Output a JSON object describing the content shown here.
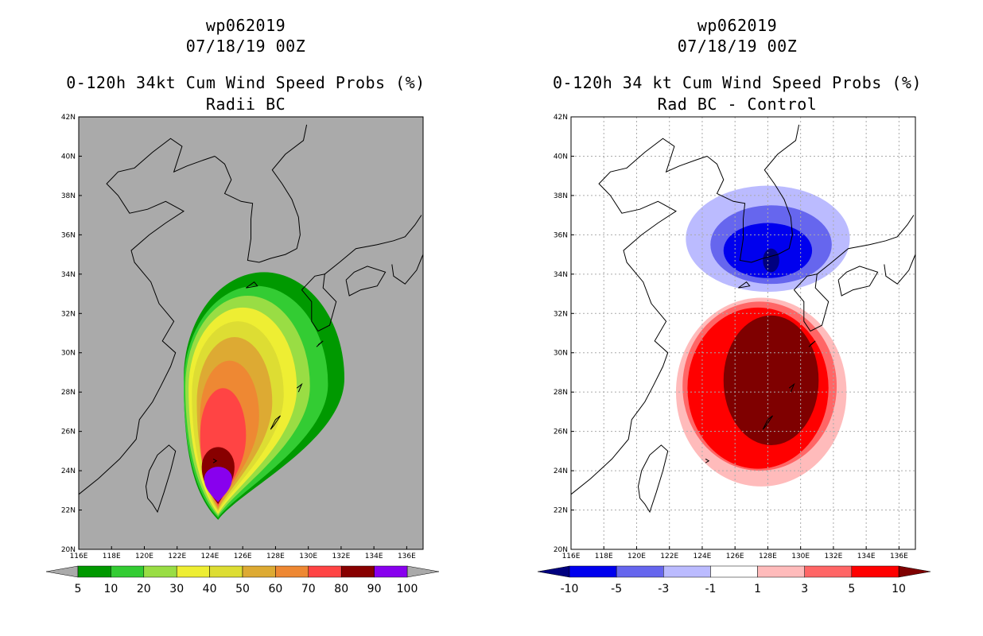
{
  "chart_data": [
    {
      "type": "heatmap",
      "storm_id": "wp062019",
      "datetime": "07/18/19 00Z",
      "title": "0-120h 34kt Cum Wind Speed Probs (%)",
      "subtitle": "Radii BC",
      "xlabel": "",
      "ylabel": "",
      "lon_range": [
        116,
        137
      ],
      "lat_range": [
        20,
        42
      ],
      "x_ticks": [
        "116E",
        "118E",
        "120E",
        "122E",
        "124E",
        "126E",
        "128E",
        "130E",
        "132E",
        "134E",
        "136E"
      ],
      "y_ticks": [
        "20N",
        "22N",
        "24N",
        "26N",
        "28N",
        "30N",
        "32N",
        "34N",
        "36N",
        "38N",
        "40N",
        "42N"
      ],
      "grid": false,
      "background_color": "#aaaaaa",
      "colorbar": {
        "labels": [
          "5",
          "10",
          "20",
          "30",
          "40",
          "50",
          "60",
          "70",
          "80",
          "90",
          "100"
        ],
        "colors": [
          "#009900",
          "#33cc33",
          "#99dd44",
          "#eeee33",
          "#dddd33",
          "#ddaa33",
          "#ee8833",
          "#ff4444",
          "#880000",
          "#8800ee"
        ],
        "end_colors": [
          "#aaaaaa",
          "#aaaaaa"
        ]
      },
      "contours": [
        {
          "level": 5,
          "color": "#009900",
          "center": [
            127.3,
            28.7
          ],
          "rx": 4.9,
          "ry_up": 5.4,
          "ry_down": 5.8,
          "tip": [
            124.5,
            21.5
          ]
        },
        {
          "level": 10,
          "color": "#33cc33",
          "center": [
            126.8,
            28.4
          ],
          "rx": 4.4,
          "ry_up": 5.0,
          "ry_down": 5.3,
          "tip": [
            124.5,
            21.6
          ]
        },
        {
          "level": 20,
          "color": "#99dd44",
          "center": [
            126.3,
            28.3
          ],
          "rx": 3.8,
          "ry_up": 4.6,
          "ry_down": 5.1,
          "tip": [
            124.5,
            21.7
          ]
        },
        {
          "level": 30,
          "color": "#eeee33",
          "center": [
            126.0,
            28.2
          ],
          "rx": 3.3,
          "ry_up": 4.1,
          "ry_down": 5.0,
          "tip": [
            124.5,
            21.8
          ]
        },
        {
          "level": 40,
          "color": "#dddd33",
          "center": [
            125.7,
            27.9
          ],
          "rx": 2.8,
          "ry_up": 3.7,
          "ry_down": 4.7,
          "tip": [
            124.5,
            21.9
          ]
        },
        {
          "level": 50,
          "color": "#ddaa33",
          "center": [
            125.5,
            27.5
          ],
          "rx": 2.3,
          "ry_up": 3.3,
          "ry_down": 4.3,
          "tip": [
            124.5,
            22.0
          ]
        },
        {
          "level": 60,
          "color": "#ee8833",
          "center": [
            125.2,
            26.8
          ],
          "rx": 1.8,
          "ry_up": 2.8,
          "ry_down": 3.8,
          "tip": [
            124.5,
            22.1
          ]
        },
        {
          "level": 70,
          "color": "#ff4444",
          "center": [
            124.8,
            25.8
          ],
          "rx": 1.4,
          "ry_up": 2.4,
          "ry_down": 3.2,
          "tip": [
            124.5,
            22.2
          ]
        },
        {
          "level": 80,
          "color": "#880000",
          "center": [
            124.5,
            24.2
          ],
          "rx": 1.0,
          "ry_up": 1.0,
          "ry_down": 1.6,
          "tip": [
            124.5,
            22.3
          ]
        },
        {
          "level": 90,
          "color": "#8800ee",
          "center": [
            124.5,
            23.6
          ],
          "rx": 0.85,
          "ry_up": 0.6,
          "ry_down": 1.0,
          "tip": [
            124.5,
            22.4
          ]
        }
      ]
    },
    {
      "type": "heatmap",
      "storm_id": "wp062019",
      "datetime": "07/18/19 00Z",
      "title": "0-120h 34 kt Cum Wind Speed Probs (%)",
      "subtitle": "Rad BC - Control",
      "xlabel": "",
      "ylabel": "",
      "lon_range": [
        116,
        137
      ],
      "lat_range": [
        20,
        42
      ],
      "x_ticks": [
        "116E",
        "118E",
        "120E",
        "122E",
        "124E",
        "126E",
        "128E",
        "130E",
        "132E",
        "134E",
        "136E"
      ],
      "y_ticks": [
        "20N",
        "22N",
        "24N",
        "26N",
        "28N",
        "30N",
        "32N",
        "34N",
        "36N",
        "38N",
        "40N",
        "42N"
      ],
      "grid": true,
      "background_color": "#ffffff",
      "colorbar": {
        "labels": [
          "-10",
          "-5",
          "-3",
          "-1",
          "1",
          "3",
          "5",
          "10"
        ],
        "colors": [
          "#0000ee",
          "#6666ee",
          "#bbbbff",
          "#ffffff",
          "#ffbbbb",
          "#ff6666",
          "#ff0000"
        ],
        "end_colors": [
          "#00007f",
          "#7f0000"
        ]
      },
      "contours": [
        {
          "level": -1,
          "color": "#bbbbff",
          "center": [
            128.0,
            35.8
          ],
          "rx": 5.0,
          "ry": 2.7
        },
        {
          "level": -3,
          "color": "#6666ee",
          "center": [
            128.2,
            35.5
          ],
          "rx": 3.7,
          "ry": 2.0
        },
        {
          "level": -5,
          "color": "#0000ee",
          "center": [
            128.0,
            35.2
          ],
          "rx": 2.7,
          "ry": 1.4
        },
        {
          "level": -10,
          "color": "#00007f",
          "center": [
            128.2,
            34.7
          ],
          "rx": 0.5,
          "ry": 0.6
        },
        {
          "level": 1,
          "color": "#ffbbbb",
          "center": [
            127.6,
            28.0
          ],
          "rx": 5.2,
          "ry": 4.8
        },
        {
          "level": 3,
          "color": "#ff6666",
          "center": [
            127.5,
            28.3
          ],
          "rx": 4.7,
          "ry": 4.3
        },
        {
          "level": 5,
          "color": "#ff0000",
          "center": [
            127.4,
            28.2
          ],
          "rx": 4.3,
          "ry": 4.1
        },
        {
          "level": 10,
          "color": "#7f0000",
          "center": [
            128.2,
            28.6
          ],
          "rx": 2.9,
          "ry": 3.3
        }
      ]
    }
  ]
}
